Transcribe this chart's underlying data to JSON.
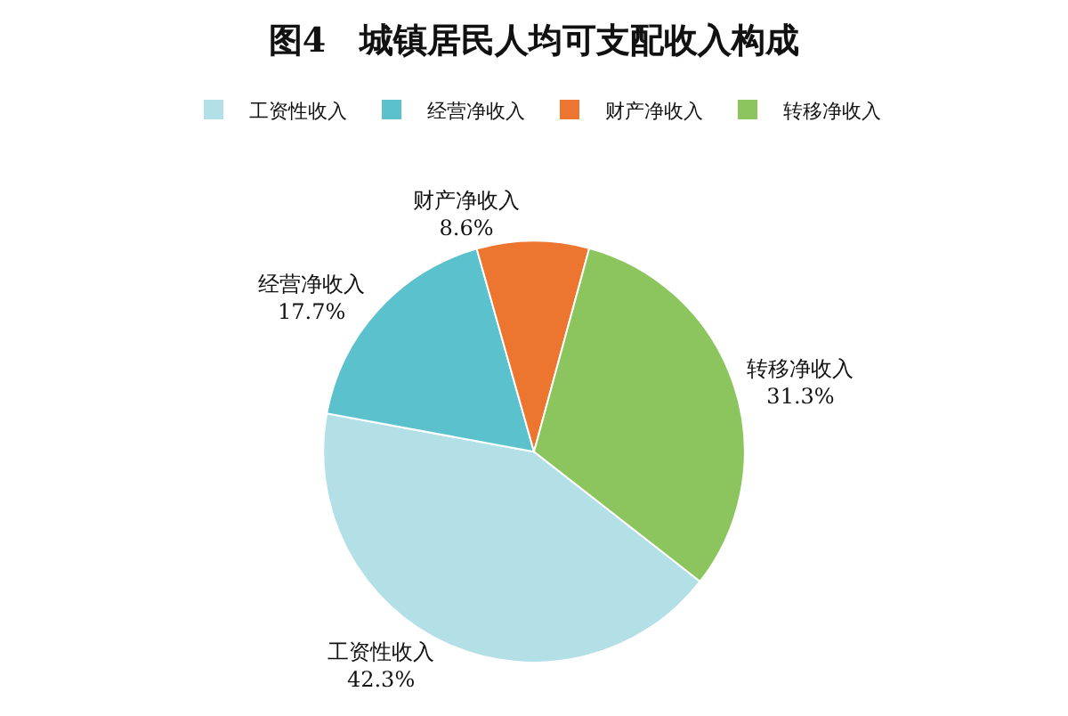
{
  "chart_data": {
    "type": "pie",
    "title": "图4　城镇居民人均可支配收入构成",
    "categories": [
      "工资性收入",
      "经营净收入",
      "财产净收入",
      "转移净收入"
    ],
    "values": [
      42.3,
      17.7,
      8.6,
      31.3
    ],
    "value_labels": [
      "42.3%",
      "17.7%",
      "8.6%",
      "31.3%"
    ],
    "colors": [
      "#b3dfe6",
      "#5bc1cc",
      "#ec7530",
      "#8cc45e"
    ],
    "legend": "top"
  }
}
